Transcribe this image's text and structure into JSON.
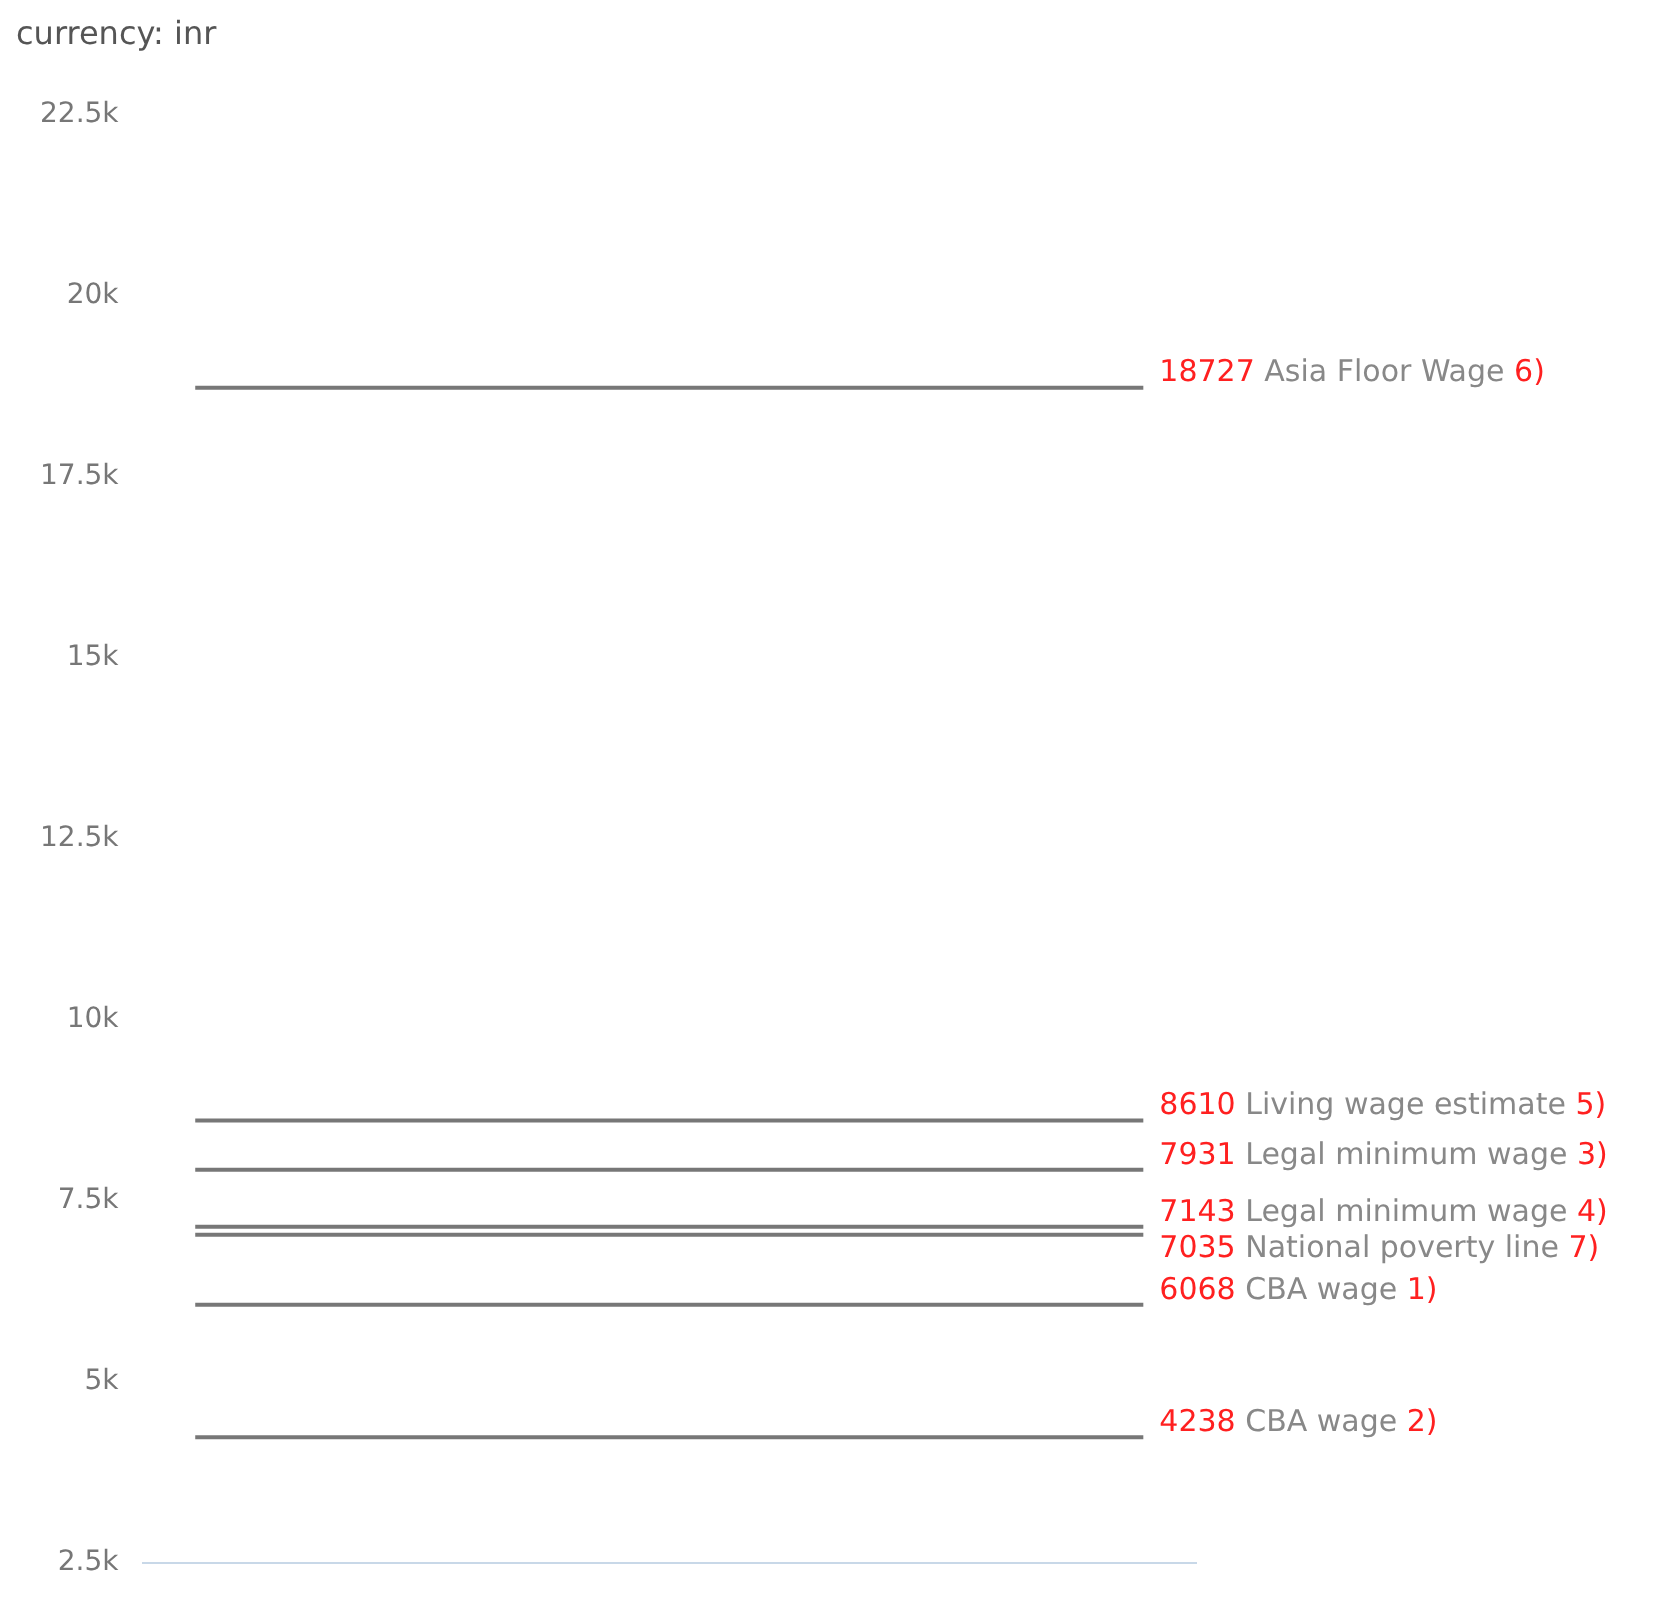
{
  "chart_data": {
    "type": "line",
    "title": "currency: inr",
    "categories": [
      null,
      null,
      null,
      null,
      null,
      null,
      null,
      null,
      null,
      null
    ],
    "marker": "none",
    "legend": false,
    "ylim": [
      2500,
      22500
    ],
    "yticks": [
      {
        "value": 2500,
        "label": "2.5k"
      },
      {
        "value": 5000,
        "label": "5k"
      },
      {
        "value": 7500,
        "label": "7.5k"
      },
      {
        "value": 10000,
        "label": "10k"
      },
      {
        "value": 12500,
        "label": "12.5k"
      },
      {
        "value": 15000,
        "label": "15k"
      },
      {
        "value": 17500,
        "label": "17.5k"
      },
      {
        "value": 20000,
        "label": "20k"
      },
      {
        "value": 22500,
        "label": "22.5k"
      }
    ],
    "series": [
      {
        "name": "CBA wage 2)",
        "color": "#777777",
        "values": [
          4238,
          4238,
          4238,
          4238,
          4238,
          4238,
          4238,
          4238,
          4238,
          4238
        ],
        "value_labels": [
          null,
          null,
          null,
          null,
          null,
          null,
          null,
          null,
          null,
          "4238"
        ]
      },
      {
        "name": "CBA wage 1)",
        "color": "#777777",
        "values": [
          6068,
          6068,
          6068,
          6068,
          6068,
          6068,
          6068,
          6068,
          6068,
          6068
        ],
        "value_labels": [
          null,
          null,
          null,
          null,
          null,
          null,
          null,
          null,
          null,
          "6068"
        ]
      },
      {
        "name": "National poverty line 7)",
        "color": "#777777",
        "values": [
          7035,
          7035,
          7035,
          7035,
          7035,
          7035,
          7035,
          7035,
          7035,
          7035
        ],
        "value_labels": [
          null,
          null,
          null,
          null,
          null,
          null,
          null,
          null,
          null,
          "7035"
        ]
      },
      {
        "name": "Legal minimum wage 4)",
        "color": "#777777",
        "values": [
          7143,
          7143,
          7143,
          7143,
          7143,
          7143,
          7143,
          7143,
          7143,
          7143
        ],
        "value_labels": [
          null,
          null,
          null,
          null,
          null,
          null,
          null,
          null,
          null,
          "7143"
        ]
      },
      {
        "name": "Legal minimum wage 3)",
        "color": "#777777",
        "values": [
          7931,
          7931,
          7931,
          7931,
          7931,
          7931,
          7931,
          7931,
          7931,
          7931
        ],
        "value_labels": [
          null,
          null,
          null,
          null,
          null,
          null,
          null,
          null,
          null,
          "7931"
        ]
      },
      {
        "name": "Living wage estimate 5)",
        "color": "#777777",
        "values": [
          8610,
          8610,
          8610,
          8610,
          8610,
          8610,
          8610,
          8610,
          8610,
          8610
        ],
        "value_labels": [
          null,
          null,
          null,
          null,
          null,
          null,
          null,
          null,
          null,
          "8610"
        ]
      },
      {
        "name": "Asia Floor Wage 6)",
        "color": "#777777",
        "values": [
          18727,
          18727,
          18727,
          18727,
          18727,
          18727,
          18727,
          18727,
          18727,
          18727
        ],
        "value_labels": [
          null,
          null,
          null,
          null,
          null,
          null,
          null,
          null,
          null,
          "18727"
        ]
      }
    ]
  }
}
